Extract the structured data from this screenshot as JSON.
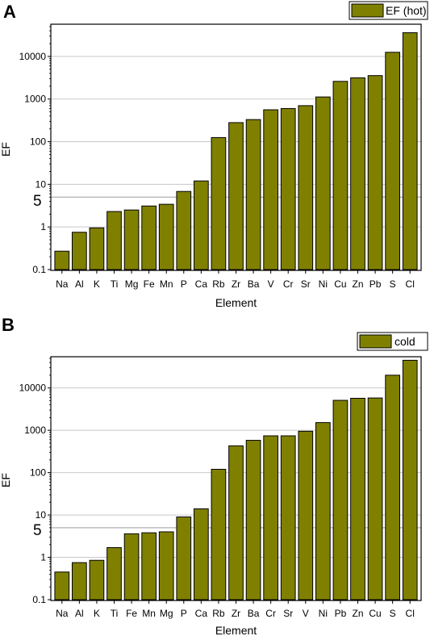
{
  "chart_data": [
    {
      "panel": "A",
      "type": "bar",
      "legend": "EF (hot)",
      "legend_position": "top-right",
      "xlabel": "Element",
      "ylabel": "EF",
      "yscale": "log",
      "ylim": [
        0.1,
        50000
      ],
      "yticks": [
        "0.1",
        "1",
        "10",
        "100",
        "1000",
        "10000"
      ],
      "reference_line": {
        "value": 5,
        "label": "5"
      },
      "grid": "horizontal",
      "bar_color": "#808000",
      "categories": [
        "Na",
        "Al",
        "K",
        "Ti",
        "Mg",
        "Fe",
        "Mn",
        "P",
        "Ca",
        "Rb",
        "Zr",
        "Ba",
        "V",
        "Cr",
        "Sr",
        "Ni",
        "Cu",
        "Zn",
        "Pb",
        "S",
        "Cl"
      ],
      "values": [
        0.27,
        0.75,
        0.95,
        2.3,
        2.5,
        3.1,
        3.4,
        6.8,
        12,
        125,
        280,
        330,
        560,
        600,
        700,
        1120,
        2600,
        3150,
        3550,
        12500,
        36000
      ]
    },
    {
      "panel": "B",
      "type": "bar",
      "legend": "cold",
      "legend_position": "top-right",
      "xlabel": "Element",
      "ylabel": "EF",
      "yscale": "log",
      "ylim": [
        0.1,
        50000
      ],
      "yticks": [
        "0.1",
        "1",
        "10",
        "100",
        "1000",
        "10000"
      ],
      "reference_line": {
        "value": 5,
        "label": "5"
      },
      "grid": "horizontal",
      "bar_color": "#808000",
      "categories": [
        "Na",
        "Al",
        "K",
        "Ti",
        "Fe",
        "Mn",
        "Mg",
        "P",
        "Ca",
        "Rb",
        "Zr",
        "Ba",
        "Cr",
        "Sr",
        "V",
        "Ni",
        "Pb",
        "Zn",
        "Cu",
        "S",
        "Cl"
      ],
      "values": [
        0.45,
        0.75,
        0.85,
        1.7,
        3.6,
        3.8,
        4.0,
        9,
        14,
        120,
        430,
        580,
        740,
        740,
        950,
        1520,
        5100,
        5700,
        5800,
        20000,
        45000
      ]
    }
  ]
}
